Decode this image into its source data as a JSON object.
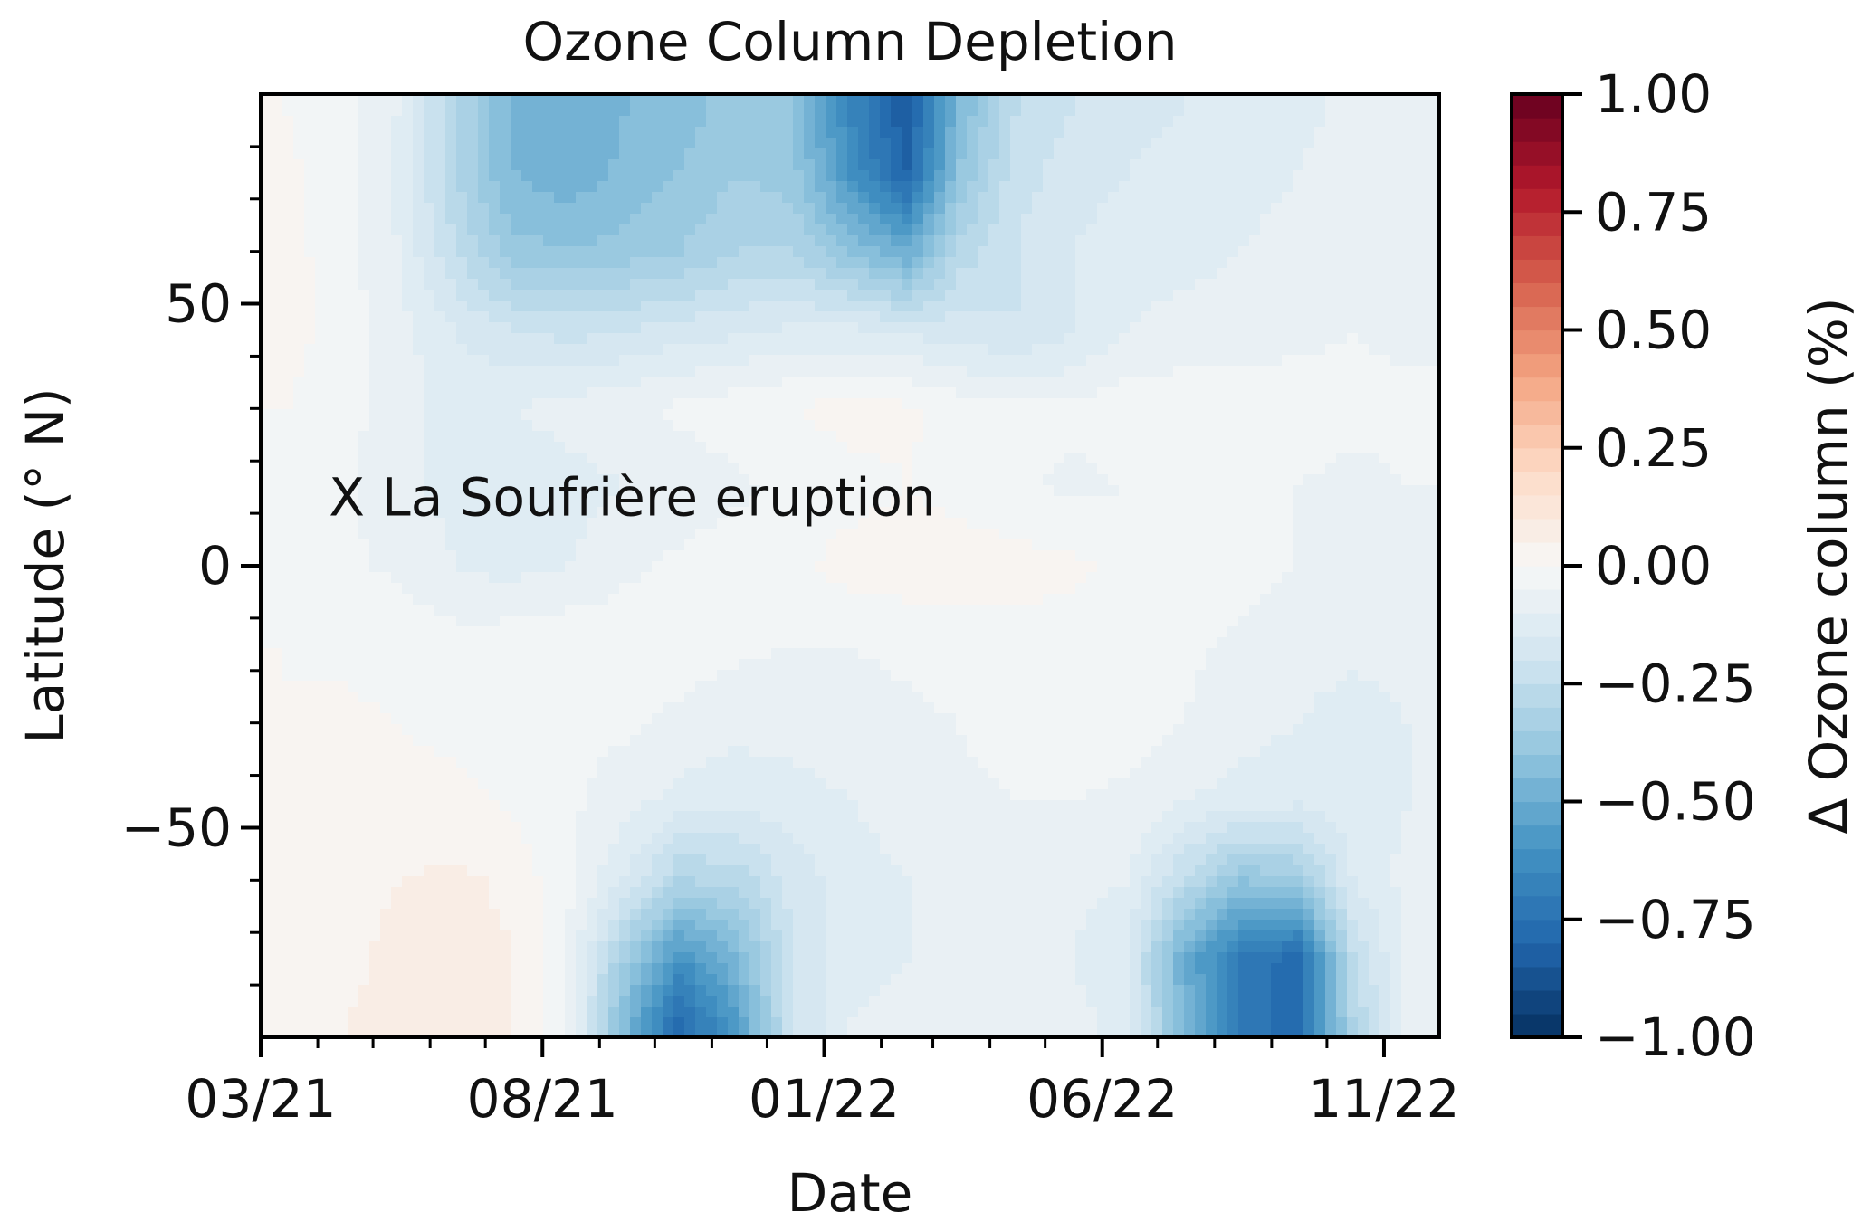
{
  "chart_data": {
    "type": "heatmap",
    "title": "Ozone Column Depletion",
    "xlabel": "Date",
    "ylabel": "Latitude (° N)",
    "colorbar_label": "Δ Ozone column (%)",
    "colormap": "RdBu_r",
    "colorscale": [
      "#053061",
      "#2166ac",
      "#4393c3",
      "#92c5de",
      "#d1e5f0",
      "#f7f7f7",
      "#fddbc7",
      "#f4a582",
      "#d6604d",
      "#b2182b",
      "#67001f"
    ],
    "clim": [
      -1.0,
      1.0
    ],
    "x_dates": [
      "2021-03-15",
      "2021-04-15",
      "2021-05-15",
      "2021-06-15",
      "2021-07-15",
      "2021-08-15",
      "2021-09-15",
      "2021-10-15",
      "2021-11-15",
      "2021-12-15",
      "2022-01-15",
      "2022-02-15",
      "2022-03-15",
      "2022-04-15",
      "2022-05-15",
      "2022-06-15",
      "2022-07-15",
      "2022-08-15",
      "2022-09-15",
      "2022-10-15",
      "2022-11-15"
    ],
    "y_lat": [
      -87,
      -75,
      -60,
      -45,
      -30,
      -15,
      0,
      15,
      30,
      45,
      60,
      75,
      87
    ],
    "z_values": [
      [
        0.02,
        0.05,
        0.06,
        0.06,
        0.05,
        -0.05,
        -0.45,
        -0.78,
        -0.55,
        -0.2,
        -0.1,
        -0.08,
        -0.06,
        -0.06,
        -0.08,
        -0.12,
        -0.45,
        -0.7,
        -0.8,
        -0.3,
        -0.08
      ],
      [
        0.02,
        0.04,
        0.06,
        0.08,
        0.05,
        -0.05,
        -0.35,
        -0.6,
        -0.45,
        -0.2,
        -0.12,
        -0.1,
        -0.08,
        -0.08,
        -0.1,
        -0.15,
        -0.5,
        -0.7,
        -0.78,
        -0.25,
        -0.08
      ],
      [
        0.02,
        0.04,
        0.05,
        0.06,
        0.04,
        -0.04,
        -0.15,
        -0.3,
        -0.28,
        -0.18,
        -0.12,
        -0.1,
        -0.08,
        -0.07,
        -0.08,
        -0.1,
        -0.25,
        -0.4,
        -0.35,
        -0.15,
        -0.08
      ],
      [
        0.0,
        0.01,
        0.02,
        0.02,
        -0.01,
        -0.04,
        -0.08,
        -0.12,
        -0.14,
        -0.12,
        -0.1,
        -0.08,
        -0.06,
        -0.05,
        -0.05,
        -0.06,
        -0.1,
        -0.12,
        -0.14,
        -0.12,
        -0.1
      ],
      [
        0.0,
        0.01,
        0.0,
        -0.02,
        -0.03,
        -0.03,
        -0.04,
        -0.06,
        -0.08,
        -0.08,
        -0.07,
        -0.06,
        -0.05,
        -0.03,
        -0.02,
        -0.03,
        -0.05,
        -0.08,
        -0.1,
        -0.12,
        -0.1
      ],
      [
        0.0,
        -0.01,
        -0.02,
        -0.03,
        -0.02,
        -0.01,
        -0.02,
        -0.03,
        -0.04,
        -0.05,
        -0.05,
        -0.04,
        -0.03,
        -0.02,
        -0.02,
        -0.03,
        -0.04,
        -0.06,
        -0.08,
        -0.09,
        -0.08
      ],
      [
        -0.03,
        -0.04,
        -0.06,
        -0.1,
        -0.12,
        -0.1,
        -0.06,
        -0.04,
        -0.02,
        -0.01,
        0.02,
        0.03,
        0.03,
        0.02,
        0.01,
        -0.01,
        -0.02,
        -0.03,
        -0.05,
        -0.06,
        -0.06
      ],
      [
        -0.02,
        -0.04,
        -0.08,
        -0.12,
        -0.14,
        -0.12,
        -0.1,
        -0.08,
        -0.06,
        -0.04,
        -0.02,
        0.0,
        -0.02,
        -0.04,
        -0.06,
        -0.05,
        -0.04,
        -0.03,
        -0.05,
        -0.06,
        -0.05
      ],
      [
        0.0,
        -0.03,
        -0.08,
        -0.12,
        -0.1,
        -0.08,
        -0.06,
        -0.04,
        -0.02,
        0.0,
        0.02,
        0.01,
        -0.02,
        -0.04,
        -0.04,
        -0.02,
        -0.02,
        -0.02,
        -0.03,
        -0.04,
        -0.04
      ],
      [
        0.02,
        -0.02,
        -0.08,
        -0.15,
        -0.2,
        -0.22,
        -0.2,
        -0.18,
        -0.16,
        -0.14,
        -0.14,
        -0.16,
        -0.18,
        -0.2,
        -0.16,
        -0.1,
        -0.08,
        -0.08,
        -0.06,
        -0.05,
        -0.06
      ],
      [
        0.02,
        -0.03,
        -0.1,
        -0.25,
        -0.38,
        -0.4,
        -0.38,
        -0.35,
        -0.3,
        -0.3,
        -0.4,
        -0.5,
        -0.28,
        -0.2,
        -0.15,
        -0.12,
        -0.12,
        -0.1,
        -0.08,
        -0.06,
        -0.08
      ],
      [
        0.01,
        -0.03,
        -0.12,
        -0.3,
        -0.45,
        -0.48,
        -0.44,
        -0.4,
        -0.35,
        -0.38,
        -0.6,
        -0.8,
        -0.4,
        -0.22,
        -0.18,
        -0.15,
        -0.14,
        -0.12,
        -0.1,
        -0.08,
        -0.1
      ],
      [
        0.0,
        -0.03,
        -0.1,
        -0.3,
        -0.45,
        -0.5,
        -0.45,
        -0.42,
        -0.38,
        -0.4,
        -0.65,
        -0.85,
        -0.45,
        -0.25,
        -0.2,
        -0.16,
        -0.15,
        -0.13,
        -0.11,
        -0.09,
        -0.1
      ]
    ],
    "xlim": [
      "2021-03-01",
      "2022-12-01"
    ],
    "ylim": [
      -90,
      90
    ],
    "x_ticks": [
      {
        "date": "2021-03-01",
        "label": "03/21"
      },
      {
        "date": "2021-08-01",
        "label": "08/21"
      },
      {
        "date": "2022-01-01",
        "label": "01/22"
      },
      {
        "date": "2022-06-01",
        "label": "06/22"
      },
      {
        "date": "2022-11-01",
        "label": "11/22"
      }
    ],
    "x_minor_ticks": [
      "2021-04-01",
      "2021-05-01",
      "2021-06-01",
      "2021-07-01",
      "2021-09-01",
      "2021-10-01",
      "2021-11-01",
      "2021-12-01",
      "2022-02-01",
      "2022-03-01",
      "2022-04-01",
      "2022-05-01",
      "2022-07-01",
      "2022-08-01",
      "2022-09-01",
      "2022-10-01"
    ],
    "y_ticks": [
      {
        "value": 50,
        "label": "50"
      },
      {
        "value": 0,
        "label": "0"
      },
      {
        "value": -50,
        "label": "−50"
      }
    ],
    "y_minor_ticks": [
      -80,
      -70,
      -60,
      -40,
      -30,
      -20,
      -10,
      10,
      20,
      30,
      40,
      60,
      70,
      80
    ],
    "colorbar_ticks": [
      {
        "value": 1.0,
        "label": "1.00"
      },
      {
        "value": 0.75,
        "label": "0.75"
      },
      {
        "value": 0.5,
        "label": "0.50"
      },
      {
        "value": 0.25,
        "label": "0.25"
      },
      {
        "value": 0.0,
        "label": "0.00"
      },
      {
        "value": -0.25,
        "label": "−0.25"
      },
      {
        "value": -0.5,
        "label": "−0.50"
      },
      {
        "value": -0.75,
        "label": "−0.75"
      },
      {
        "value": -1.0,
        "label": "−1.00"
      }
    ],
    "annotation": {
      "text": "X La Soufrière eruption",
      "date": "2021-04-07",
      "lat": 13
    },
    "grid": false
  }
}
